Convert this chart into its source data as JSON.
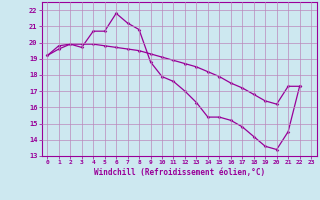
{
  "xlabel": "Windchill (Refroidissement éolien,°C)",
  "bg_color": "#cde8f0",
  "grid_color": "#bb88bb",
  "line_color": "#990099",
  "spine_color": "#990099",
  "xlim": [
    -0.5,
    23.5
  ],
  "ylim": [
    13,
    22.5
  ],
  "yticks": [
    13,
    14,
    15,
    16,
    17,
    18,
    19,
    20,
    21,
    22
  ],
  "xticks": [
    0,
    1,
    2,
    3,
    4,
    5,
    6,
    7,
    8,
    9,
    10,
    11,
    12,
    13,
    14,
    15,
    16,
    17,
    18,
    19,
    20,
    21,
    22,
    23
  ],
  "series1_x": [
    0,
    1,
    2,
    3,
    4,
    5,
    6,
    7,
    8,
    9,
    10,
    11,
    12,
    13,
    14,
    15,
    16,
    17,
    18,
    19,
    20,
    21,
    22
  ],
  "series1_y": [
    19.2,
    19.8,
    19.9,
    19.7,
    20.7,
    20.7,
    21.8,
    21.2,
    20.8,
    18.8,
    17.9,
    17.6,
    17.0,
    16.3,
    15.4,
    15.4,
    15.2,
    14.8,
    14.2,
    13.6,
    13.4,
    14.5,
    17.3
  ],
  "series2_x": [
    0,
    1,
    2,
    3,
    4,
    5,
    6,
    7,
    8,
    9,
    10,
    11,
    12,
    13,
    14,
    15,
    16,
    17,
    18,
    19,
    20,
    21,
    22
  ],
  "series2_y": [
    19.2,
    19.6,
    19.9,
    19.9,
    19.9,
    19.8,
    19.7,
    19.6,
    19.5,
    19.3,
    19.1,
    18.9,
    18.7,
    18.5,
    18.2,
    17.9,
    17.5,
    17.2,
    16.8,
    16.4,
    16.2,
    17.3,
    17.3
  ]
}
